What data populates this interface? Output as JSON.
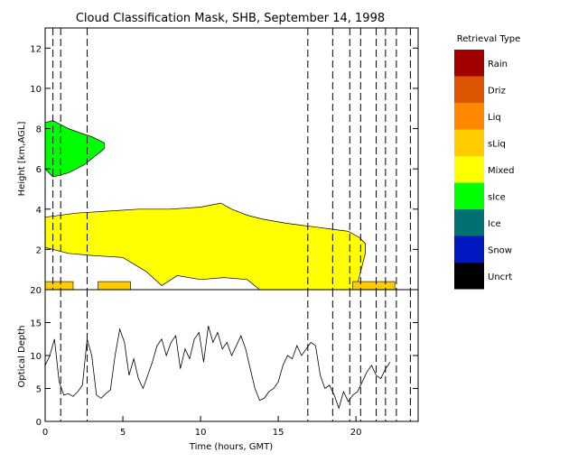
{
  "title": "Cloud Classification Mask, SHB, September 14, 1998",
  "legend": {
    "title": "Retrieval Type",
    "items": [
      {
        "label": "Rain",
        "color": "#a00000"
      },
      {
        "label": "Driz",
        "color": "#dd5500"
      },
      {
        "label": "Liq",
        "color": "#ff8800"
      },
      {
        "label": "sLiq",
        "color": "#ffcc00"
      },
      {
        "label": "Mixed",
        "color": "#ffff00"
      },
      {
        "label": "sIce",
        "color": "#00ff00"
      },
      {
        "label": "Ice",
        "color": "#007070"
      },
      {
        "label": "Snow",
        "color": "#0018c0"
      },
      {
        "label": "Uncrt",
        "color": "#000000"
      }
    ]
  },
  "chart_data": [
    {
      "type": "heatmap",
      "title": "Cloud Classification Mask, SHB, September 14, 1998",
      "xlabel": "",
      "ylabel": "Height [km,AGL]",
      "xlim": [
        0,
        24
      ],
      "ylim": [
        0,
        13
      ],
      "yticks": [
        2,
        4,
        6,
        8,
        10,
        12
      ],
      "xticks": [
        0,
        5,
        10,
        15,
        20
      ],
      "dashed_vlines": [
        0.5,
        1.0,
        2.7,
        16.9,
        18.5,
        19.6,
        20.3,
        21.3,
        21.9,
        22.6,
        23.5
      ],
      "layers": [
        {
          "class": "sIce",
          "base": [
            [
              0.0,
              6.0
            ],
            [
              0.5,
              5.6
            ],
            [
              1.5,
              5.8
            ],
            [
              2.5,
              6.2
            ],
            [
              3.0,
              6.5
            ],
            [
              3.8,
              7.0
            ]
          ],
          "top": [
            [
              0.0,
              8.3
            ],
            [
              0.5,
              8.4
            ],
            [
              1.0,
              8.2
            ],
            [
              1.5,
              8.0
            ],
            [
              2.2,
              7.8
            ],
            [
              3.0,
              7.6
            ],
            [
              3.8,
              7.3
            ]
          ]
        },
        {
          "class": "Mixed",
          "base": [
            [
              0.0,
              2.1
            ],
            [
              1.5,
              1.8
            ],
            [
              3.0,
              1.7
            ],
            [
              5.0,
              1.6
            ],
            [
              6.5,
              0.9
            ],
            [
              7.5,
              0.2
            ],
            [
              8.5,
              0.7
            ],
            [
              10.0,
              0.5
            ],
            [
              11.5,
              0.6
            ],
            [
              13.0,
              0.5
            ],
            [
              13.8,
              0.0
            ],
            [
              20.0,
              0.0
            ],
            [
              20.6,
              1.8
            ]
          ],
          "top": [
            [
              0.0,
              3.6
            ],
            [
              2.0,
              3.8
            ],
            [
              4.0,
              3.9
            ],
            [
              6.0,
              4.0
            ],
            [
              8.0,
              4.0
            ],
            [
              10.0,
              4.1
            ],
            [
              11.3,
              4.3
            ],
            [
              12.0,
              4.0
            ],
            [
              13.0,
              3.7
            ],
            [
              14.0,
              3.5
            ],
            [
              15.5,
              3.3
            ],
            [
              16.5,
              3.2
            ],
            [
              17.5,
              3.1
            ],
            [
              18.5,
              3.0
            ],
            [
              19.5,
              2.9
            ],
            [
              20.2,
              2.6
            ],
            [
              20.6,
              2.3
            ]
          ]
        },
        {
          "class": "sLiq",
          "segments": [
            [
              0.0,
              1.8
            ],
            [
              3.4,
              5.5
            ],
            [
              19.8,
              22.5
            ]
          ],
          "base": 0.0,
          "top": 0.4
        }
      ]
    },
    {
      "type": "line",
      "xlabel": "Time (hours, GMT)",
      "ylabel": "Optical Depth",
      "xlim": [
        0,
        24
      ],
      "ylim": [
        0,
        20
      ],
      "yticks": [
        0,
        5,
        10,
        15,
        20
      ],
      "xticks": [
        0,
        5,
        10,
        15,
        20
      ],
      "dashed_vlines": [
        1.0,
        2.7,
        16.9,
        18.5,
        19.6,
        20.3,
        21.3,
        21.9,
        22.6,
        23.5
      ],
      "x": [
        0.0,
        0.3,
        0.6,
        0.9,
        1.2,
        1.5,
        1.8,
        2.1,
        2.4,
        2.7,
        3.0,
        3.3,
        3.6,
        3.9,
        4.2,
        4.5,
        4.8,
        5.1,
        5.4,
        5.7,
        6.0,
        6.3,
        6.6,
        6.9,
        7.2,
        7.5,
        7.8,
        8.1,
        8.4,
        8.7,
        9.0,
        9.3,
        9.6,
        9.9,
        10.2,
        10.5,
        10.8,
        11.1,
        11.4,
        11.7,
        12.0,
        12.3,
        12.6,
        12.9,
        13.2,
        13.5,
        13.8,
        14.1,
        14.4,
        14.7,
        15.0,
        15.3,
        15.6,
        15.9,
        16.2,
        16.5,
        16.8,
        17.1,
        17.4,
        17.7,
        18.0,
        18.3,
        18.6,
        18.9,
        19.2,
        19.5,
        19.8,
        20.1,
        20.4,
        20.7,
        21.0,
        21.3,
        21.6,
        21.9,
        22.2
      ],
      "values": [
        8.5,
        10.0,
        12.5,
        6.0,
        4.0,
        4.2,
        3.8,
        4.5,
        5.5,
        12.5,
        10.0,
        4.0,
        3.5,
        4.2,
        4.8,
        10.0,
        14.0,
        12.0,
        7.0,
        9.5,
        6.5,
        5.0,
        7.0,
        9.0,
        11.5,
        12.5,
        10.0,
        12.0,
        13.0,
        8.0,
        11.0,
        9.5,
        12.5,
        13.5,
        9.0,
        14.5,
        12.0,
        13.5,
        11.0,
        12.0,
        10.0,
        11.5,
        13.0,
        11.0,
        8.0,
        5.0,
        3.2,
        3.5,
        4.5,
        5.0,
        6.0,
        8.5,
        10.0,
        9.5,
        11.5,
        10.0,
        11.0,
        12.0,
        11.5,
        7.0,
        5.0,
        5.5,
        4.0,
        2.0,
        4.5,
        3.0,
        4.0,
        4.5,
        6.0,
        7.5,
        8.5,
        7.0,
        6.5,
        8.0,
        9.0
      ]
    }
  ]
}
